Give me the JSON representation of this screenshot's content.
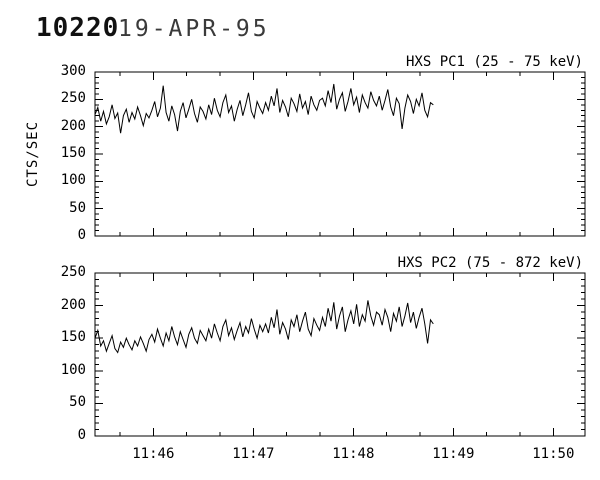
{
  "header": {
    "flare_id": "10220",
    "date": "19-APR-95"
  },
  "colors": {
    "foreground": "#000000",
    "background": "#ffffff"
  },
  "y_axis_label": "CTS/SEC",
  "chart_data": [
    {
      "type": "line",
      "title": "HXS PC1 (25 - 75 keV)",
      "ylabel": "CTS/SEC",
      "xlabel": "",
      "ylim": [
        0,
        300
      ],
      "ytick_step": 50,
      "yminor_step": 10,
      "ytick_labels": [
        "0",
        "50",
        "100",
        "150",
        "200",
        "250",
        "300"
      ],
      "x_reference": "seconds after 11:45:00",
      "xlim_seconds": [
        25,
        319
      ],
      "xtick_seconds": [
        60,
        120,
        180,
        240,
        300
      ],
      "xtick_labels": [
        "11:46",
        "11:47",
        "11:48",
        "11:49",
        "11:50"
      ],
      "xminor_step_seconds": 20,
      "show_x_tick_labels": false,
      "show_y_axis_label": true,
      "data_start_seconds": 25,
      "data_end_seconds": 228,
      "values": [
        222,
        235,
        210,
        228,
        205,
        218,
        240,
        215,
        225,
        188,
        220,
        232,
        208,
        226,
        214,
        236,
        220,
        202,
        224,
        216,
        230,
        246,
        218,
        234,
        275,
        226,
        210,
        238,
        222,
        192,
        228,
        244,
        216,
        232,
        250,
        224,
        208,
        236,
        228,
        214,
        240,
        222,
        252,
        230,
        218,
        244,
        258,
        226,
        238,
        210,
        232,
        248,
        220,
        240,
        262,
        228,
        216,
        246,
        234,
        224,
        244,
        230,
        256,
        238,
        270,
        226,
        248,
        236,
        218,
        252,
        242,
        228,
        260,
        234,
        246,
        222,
        256,
        240,
        230,
        248,
        252,
        238,
        266,
        244,
        278,
        232,
        250,
        262,
        228,
        246,
        270,
        240,
        254,
        226,
        258,
        244,
        234,
        264,
        248,
        238,
        256,
        230,
        248,
        268,
        236,
        220,
        252,
        242,
        196,
        234,
        258,
        246,
        224,
        250,
        238,
        262,
        230,
        218,
        244,
        240
      ]
    },
    {
      "type": "line",
      "title": "HXS PC2 (75 - 872 keV)",
      "ylabel": "",
      "xlabel": "",
      "ylim": [
        0,
        250
      ],
      "ytick_step": 50,
      "yminor_step": 10,
      "ytick_labels": [
        "0",
        "50",
        "100",
        "150",
        "200",
        "250"
      ],
      "x_reference": "seconds after 11:45:00",
      "xlim_seconds": [
        25,
        319
      ],
      "xtick_seconds": [
        60,
        120,
        180,
        240,
        300
      ],
      "xtick_labels": [
        "11:46",
        "11:47",
        "11:48",
        "11:49",
        "11:50"
      ],
      "xminor_step_seconds": 20,
      "show_x_tick_labels": true,
      "show_y_axis_label": false,
      "data_start_seconds": 25,
      "data_end_seconds": 228,
      "values": [
        150,
        162,
        138,
        146,
        130,
        142,
        154,
        134,
        128,
        144,
        136,
        150,
        140,
        132,
        146,
        138,
        152,
        142,
        130,
        148,
        156,
        144,
        164,
        150,
        138,
        158,
        146,
        168,
        152,
        140,
        160,
        148,
        136,
        156,
        166,
        150,
        142,
        162,
        154,
        146,
        164,
        150,
        172,
        158,
        146,
        168,
        178,
        154,
        166,
        148,
        162,
        174,
        152,
        168,
        158,
        180,
        164,
        150,
        170,
        160,
        172,
        158,
        182,
        166,
        194,
        156,
        174,
        164,
        148,
        178,
        168,
        186,
        160,
        176,
        190,
        164,
        154,
        180,
        170,
        162,
        182,
        168,
        196,
        176,
        205,
        164,
        184,
        198,
        160,
        178,
        192,
        172,
        202,
        168,
        186,
        176,
        208,
        184,
        170,
        190,
        186,
        170,
        194,
        182,
        160,
        188,
        176,
        198,
        168,
        184,
        204,
        174,
        190,
        165,
        182,
        196,
        172,
        142,
        178,
        172
      ]
    }
  ]
}
